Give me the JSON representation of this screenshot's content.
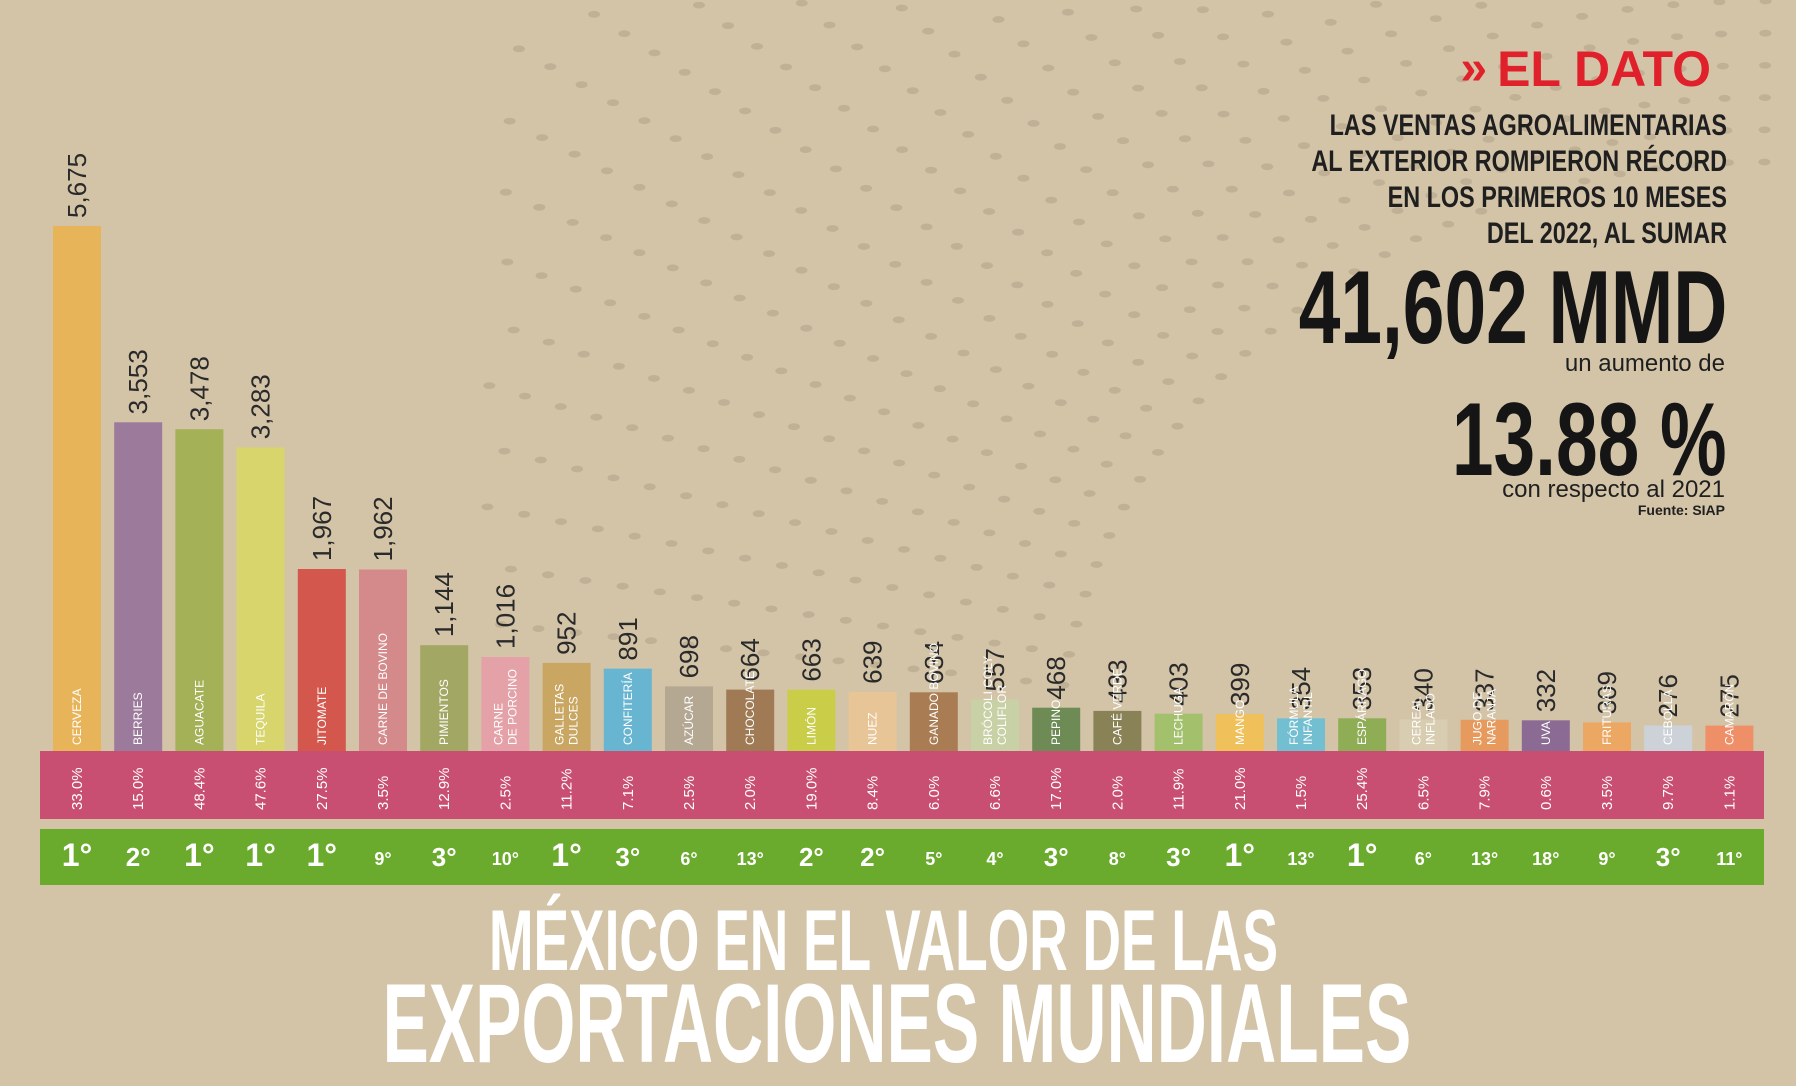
{
  "branding": {
    "chevrons": "»",
    "tag": "EL DATO"
  },
  "headline": {
    "lines": [
      "LAS VENTAS AGROALIMENTARIAS",
      "AL EXTERIOR ROMPIERON RÉCORD",
      "EN LOS PRIMEROS 10 MESES",
      "DEL 2022, AL SUMAR"
    ],
    "amount": "41,602 MMD",
    "increase_label": "un aumento de",
    "percent": "13.88 %",
    "compare_label": "con respecto al 2021",
    "source": "Fuente: SIAP"
  },
  "title": {
    "line1": "MÉXICO EN EL VALOR DE LAS",
    "line2": "EXPORTACIONES MUNDIALES"
  },
  "colors": {
    "background": "#d3c4a8",
    "share_band": "#c94f72",
    "rank_band": "#6aaa2c",
    "accent_red": "#e0202b"
  },
  "chart_data": {
    "type": "bar",
    "categories": [
      "CERVEZA",
      "BERRIES",
      "AGUACATE",
      "TEQUILA",
      "JITOMATE",
      "CARNE DE BOVINO",
      "PIMIENTOS",
      "CARNE DE PORCINO",
      "GALLETAS DULCES",
      "CONFITERÍA",
      "AZÚCAR",
      "CHOCOLATE",
      "LIMÓN",
      "NUEZ",
      "GANADO BOVINO",
      "BRÓCOLI COLY COLIFLOR",
      "PEPINO",
      "CAFÉ VERDE",
      "LECHUGA",
      "MANGO",
      "FÓRMULA INFANTIL",
      "ESPÁRRAGO",
      "CEREAL INFLADO",
      "JUGO DE NARANJA",
      "UVA",
      "FRITURAS",
      "CEBOLLA",
      "CAMARÓN"
    ],
    "label_lines": [
      [
        "CERVEZA"
      ],
      [
        "BERRIES"
      ],
      [
        "AGUACATE"
      ],
      [
        "TEQUILA"
      ],
      [
        "JITOMATE"
      ],
      [
        "CARNE DE BOVINO"
      ],
      [
        "PIMIENTOS"
      ],
      [
        "CARNE",
        "DE PORCINO"
      ],
      [
        "GALLETAS",
        "DULCES"
      ],
      [
        "CONFITERÍA"
      ],
      [
        "AZÚCAR"
      ],
      [
        "CHOCOLATE"
      ],
      [
        "LIMÓN"
      ],
      [
        "NUEZ"
      ],
      [
        "GANADO BOVINO"
      ],
      [
        "BRÓCOLI COLY",
        "COLIFLOR"
      ],
      [
        "PEPINO"
      ],
      [
        "CAFÉ VERDE"
      ],
      [
        "LECHUGA"
      ],
      [
        "MANGO"
      ],
      [
        "FÓRMULA",
        "INFANTIL"
      ],
      [
        "ESPÁRRAGO"
      ],
      [
        "CEREAL",
        "INFLADO"
      ],
      [
        "JUGO DE",
        "NARANJA"
      ],
      [
        "UVA"
      ],
      [
        "FRITURAS"
      ],
      [
        "CEBOLLA"
      ],
      [
        "CAMARÓN"
      ]
    ],
    "values": [
      5675,
      3553,
      3478,
      3283,
      1967,
      1962,
      1144,
      1016,
      952,
      891,
      698,
      664,
      663,
      639,
      634,
      557,
      468,
      433,
      403,
      399,
      354,
      353,
      340,
      337,
      332,
      309,
      276,
      275
    ],
    "value_labels": [
      "5,675",
      "3,553",
      "3,478",
      "3,283",
      "1,967",
      "1,962",
      "1,144",
      "1,016",
      "952",
      "891",
      "698",
      "664",
      "663",
      "639",
      "634",
      "557",
      "468",
      "433",
      "403",
      "399",
      "354",
      "353",
      "340",
      "337",
      "332",
      "309",
      "276",
      "275"
    ],
    "shares": [
      "33.0%",
      "15.0%",
      "48.4%",
      "47.6%",
      "27.5%",
      "3.5%",
      "12.9%",
      "2.5%",
      "11.2%",
      "7.1%",
      "2.5%",
      "2.0%",
      "19.0%",
      "8.4%",
      "6.0%",
      "6.6%",
      "17.0%",
      "2.0%",
      "11.9%",
      "21.0%",
      "1.5%",
      "25.4%",
      "6.5%",
      "7.9%",
      "0.6%",
      "3.5%",
      "9.7%",
      "1.1%"
    ],
    "ranks": [
      "1°",
      "2°",
      "1°",
      "1°",
      "1°",
      "9°",
      "3°",
      "10°",
      "1°",
      "3°",
      "6°",
      "13°",
      "2°",
      "2°",
      "5°",
      "4°",
      "3°",
      "8°",
      "3°",
      "1°",
      "13°",
      "1°",
      "6°",
      "13°",
      "18°",
      "9°",
      "3°",
      "11°"
    ],
    "bar_colors": [
      "#e8b45a",
      "#9c7a9b",
      "#a5b157",
      "#d7d56b",
      "#d4574d",
      "#d48a8b",
      "#a3a764",
      "#e4a2a8",
      "#c9a662",
      "#68b5d1",
      "#b4a893",
      "#9f7a54",
      "#c9cd48",
      "#e8c597",
      "#a97c53",
      "#c8d0a6",
      "#6e8b55",
      "#8a8257",
      "#a3c06c",
      "#f0c05a",
      "#72bfd1",
      "#8fad55",
      "#d8cdb1",
      "#e69a5d",
      "#8b6b94",
      "#eca862",
      "#cdd2d8",
      "#ee8f68"
    ],
    "ylim": [
      0,
      5675
    ]
  }
}
